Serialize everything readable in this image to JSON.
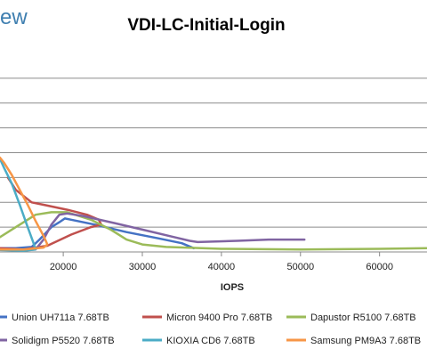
{
  "brand_text": "ew",
  "chart_data": {
    "type": "line",
    "title": "VDI-LC-Initial-Login",
    "xlabel": "IOPS",
    "ylabel": "",
    "x_ticks": [
      20000,
      30000,
      40000,
      50000,
      60000
    ],
    "xlim": [
      12000,
      66000
    ],
    "ylim": [
      0,
      16
    ],
    "y_gridlines": [
      2,
      4,
      6,
      8,
      10,
      12,
      14
    ],
    "grid": true,
    "legend_position": "bottom",
    "series": [
      {
        "name": "Union UH711a 7.68TB",
        "color": "#4472c4",
        "points": [
          [
            12000,
            0.3
          ],
          [
            14000,
            0.3
          ],
          [
            16000,
            0.4
          ],
          [
            17000,
            1.0
          ],
          [
            18500,
            2.0
          ],
          [
            19500,
            2.4
          ],
          [
            20200,
            2.7
          ],
          [
            21000,
            2.6
          ],
          [
            24000,
            2.2
          ],
          [
            28000,
            1.6
          ],
          [
            32000,
            1.1
          ],
          [
            35000,
            0.7
          ],
          [
            36500,
            0.3
          ]
        ]
      },
      {
        "name": "Micron 9400 Pro 7.68TB",
        "color": "#c0504d",
        "points": [
          [
            12000,
            0.3
          ],
          [
            15000,
            0.2
          ],
          [
            18000,
            0.5
          ],
          [
            21000,
            1.4
          ],
          [
            23500,
            2.0
          ],
          [
            24800,
            2.2
          ],
          [
            24500,
            2.6
          ],
          [
            23000,
            3.0
          ],
          [
            20500,
            3.4
          ],
          [
            17500,
            3.8
          ],
          [
            16000,
            4.0
          ],
          [
            14000,
            5.0
          ],
          [
            13000,
            6.0
          ]
        ]
      },
      {
        "name": "Dapustor R5100 7.68TB",
        "color": "#9bbb59",
        "points": [
          [
            12000,
            1.2
          ],
          [
            14000,
            2.0
          ],
          [
            16500,
            3.0
          ],
          [
            18500,
            3.2
          ],
          [
            20500,
            3.2
          ],
          [
            23500,
            2.6
          ],
          [
            26000,
            1.8
          ],
          [
            28000,
            1.0
          ],
          [
            30000,
            0.6
          ],
          [
            33000,
            0.4
          ],
          [
            40000,
            0.25
          ],
          [
            50000,
            0.2
          ],
          [
            60000,
            0.25
          ],
          [
            66000,
            0.3
          ]
        ]
      },
      {
        "name": "Solidigm P5520 7.68TB",
        "color": "#8064a2",
        "points": [
          [
            12000,
            0.2
          ],
          [
            15000,
            0.15
          ],
          [
            16500,
            0.2
          ],
          [
            17500,
            1.0
          ],
          [
            18500,
            2.2
          ],
          [
            19500,
            3.0
          ],
          [
            20500,
            3.1
          ],
          [
            22500,
            2.9
          ],
          [
            26000,
            2.4
          ],
          [
            30000,
            1.8
          ],
          [
            34000,
            1.2
          ],
          [
            36000,
            0.9
          ],
          [
            37000,
            0.8
          ],
          [
            42000,
            0.9
          ],
          [
            46000,
            1.0
          ],
          [
            50500,
            1.0
          ]
        ]
      },
      {
        "name": "KIOXIA CD6 7.68TB",
        "color": "#4bacc6",
        "points": [
          [
            12000,
            0.15
          ],
          [
            15000,
            0.1
          ],
          [
            16500,
            0.2
          ],
          [
            16200,
            0.8
          ],
          [
            15500,
            2.0
          ],
          [
            14500,
            3.8
          ],
          [
            13500,
            5.5
          ],
          [
            12500,
            6.8
          ],
          [
            12000,
            7.5
          ]
        ]
      },
      {
        "name": "Samsung PM9A3 7.68TB",
        "color": "#f79646",
        "points": [
          [
            12000,
            0.2
          ],
          [
            15000,
            0.2
          ],
          [
            17500,
            0.35
          ],
          [
            18000,
            0.6
          ],
          [
            17500,
            1.3
          ],
          [
            16500,
            2.5
          ],
          [
            15500,
            3.8
          ],
          [
            14500,
            5.0
          ],
          [
            13500,
            6.2
          ],
          [
            12500,
            7.2
          ],
          [
            12000,
            7.6
          ]
        ]
      }
    ]
  }
}
